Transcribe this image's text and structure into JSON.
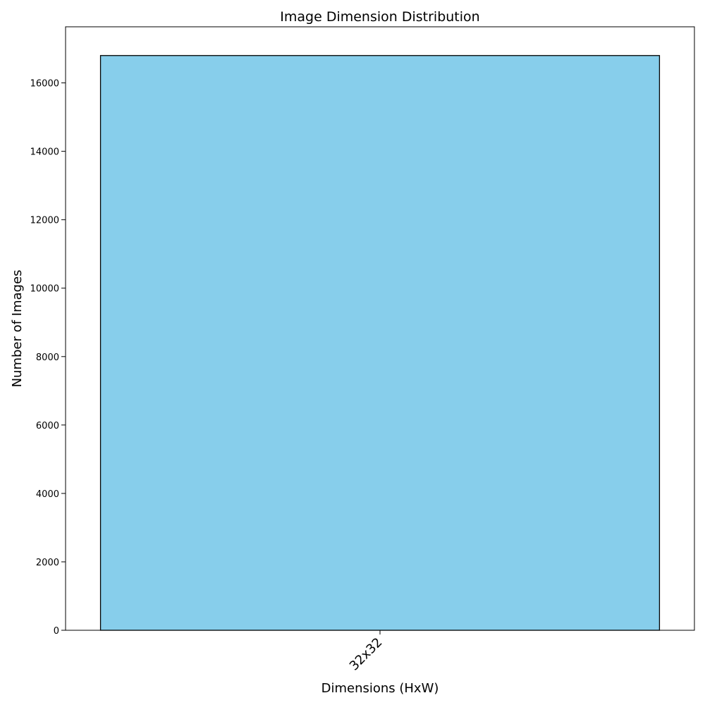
{
  "chart_data": {
    "type": "bar",
    "title": "Image Dimension Distribution",
    "xlabel": "Dimensions (HxW)",
    "ylabel": "Number of Images",
    "categories": [
      "32x32"
    ],
    "values": [
      16800
    ],
    "ylim": [
      0,
      17640
    ],
    "yticks": [
      0,
      2000,
      4000,
      6000,
      8000,
      10000,
      12000,
      14000,
      16000
    ],
    "bar_color": "#87CEEB",
    "bar_edge_color": "#000000",
    "grid": false,
    "legend": "none"
  }
}
